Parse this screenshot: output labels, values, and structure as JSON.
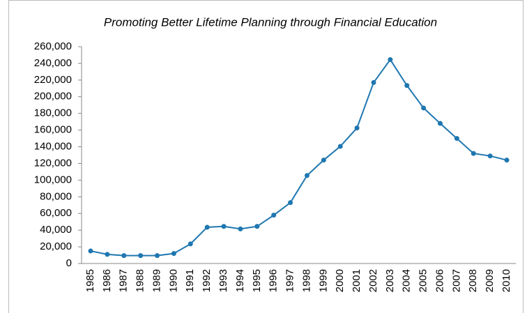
{
  "chart_data": {
    "type": "line",
    "title": "Promoting Better Lifetime Planning through Financial Education",
    "categories": [
      "1985",
      "1986",
      "1987",
      "1988",
      "1989",
      "1990",
      "1991",
      "1992",
      "1993",
      "1994",
      "1995",
      "1996",
      "1997",
      "1998",
      "1999",
      "2000",
      "2001",
      "2002",
      "2003",
      "2004",
      "2005",
      "2006",
      "2007",
      "2008",
      "2009",
      "2010"
    ],
    "series": [
      {
        "color": "#1f77b0",
        "values": [
          15000,
          11000,
          9500,
          9500,
          9500,
          12000,
          23500,
          43500,
          44500,
          41500,
          44500,
          58000,
          73000,
          105500,
          124000,
          140500,
          162500,
          217000,
          244500,
          213500,
          186500,
          168000,
          150000,
          132000,
          129000,
          124000
        ]
      }
    ],
    "ylim": [
      0,
      260000
    ],
    "yticks": [
      0,
      {
        "value": 20000,
        "label": "20,000"
      },
      {
        "value": 40000,
        "label": "40,000"
      },
      {
        "value": 60000,
        "label": "60,000"
      },
      {
        "value": 80000,
        "label": "80,000"
      },
      {
        "value": 100000,
        "label": "100,000"
      },
      {
        "value": 120000,
        "label": "120,000"
      },
      {
        "value": 140000,
        "label": "140,000"
      },
      {
        "value": 160000,
        "label": "160,000"
      },
      {
        "value": 180000,
        "label": "180,000"
      },
      {
        "value": 200000,
        "label": "200,000"
      },
      {
        "value": 220000,
        "label": "220,000"
      },
      {
        "value": 240000,
        "label": "240,000"
      },
      {
        "value": 260000,
        "label": "260,000"
      }
    ],
    "grid": false
  }
}
